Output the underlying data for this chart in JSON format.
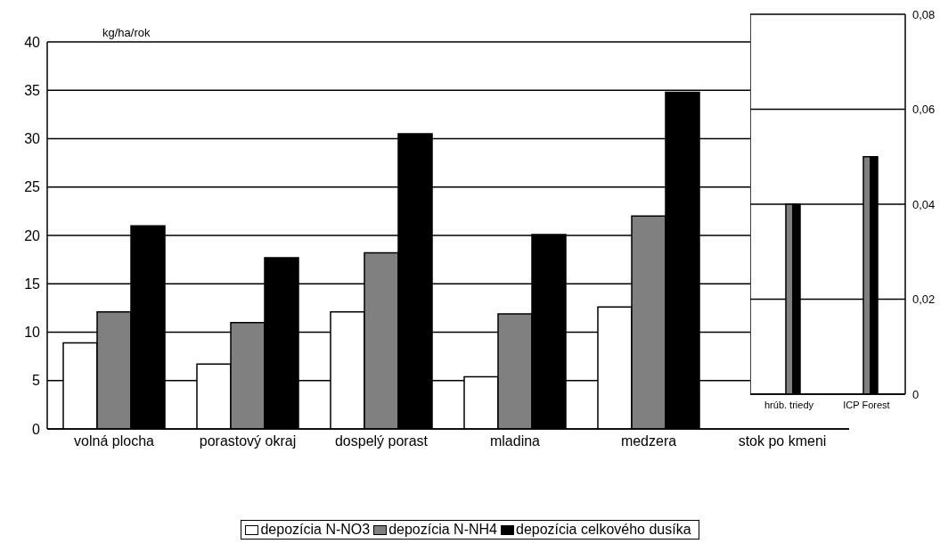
{
  "chart_data": [
    {
      "type": "bar",
      "ylabel": "kg/ha/rok",
      "categories": [
        "volná plocha",
        "porastový okraj",
        "dospelý porast",
        "mladina",
        "medzera",
        "stok po kmeni"
      ],
      "series": [
        {
          "name": "depozícia N-NO3",
          "color": "#ffffff",
          "values": [
            8.9,
            6.7,
            12.1,
            5.4,
            12.6,
            null
          ]
        },
        {
          "name": "depozícia N-NH4",
          "color": "#808080",
          "values": [
            12.1,
            11,
            18.2,
            11.9,
            22,
            null
          ]
        },
        {
          "name": "depozícia celkového dusíka",
          "color": "#000000",
          "values": [
            21,
            17.7,
            30.5,
            20.1,
            34.8,
            null
          ]
        }
      ],
      "ylim": [
        0,
        40
      ],
      "yticks": [
        0,
        5,
        10,
        15,
        20,
        25,
        30,
        35,
        40
      ],
      "grid": "y",
      "legend": "bottom"
    },
    {
      "type": "bar",
      "categories": [
        "hrúb. triedy",
        "ICP Forest"
      ],
      "series": [
        {
          "color": "#ffffff",
          "values": [
            0,
            0
          ]
        },
        {
          "color": "#808080",
          "values": [
            0.04,
            0.05
          ]
        },
        {
          "color": "#000000",
          "values": [
            0.04,
            0.05
          ]
        }
      ],
      "ylim": [
        0,
        0.08
      ],
      "yticks": [
        0,
        {
          "value": 0.02,
          "label": "0,02"
        },
        {
          "value": 0.04,
          "label": "0,04"
        },
        {
          "value": 0.06,
          "label": "0,06"
        },
        {
          "value": 0.08,
          "label": "0,08"
        }
      ],
      "grid": "y"
    }
  ]
}
